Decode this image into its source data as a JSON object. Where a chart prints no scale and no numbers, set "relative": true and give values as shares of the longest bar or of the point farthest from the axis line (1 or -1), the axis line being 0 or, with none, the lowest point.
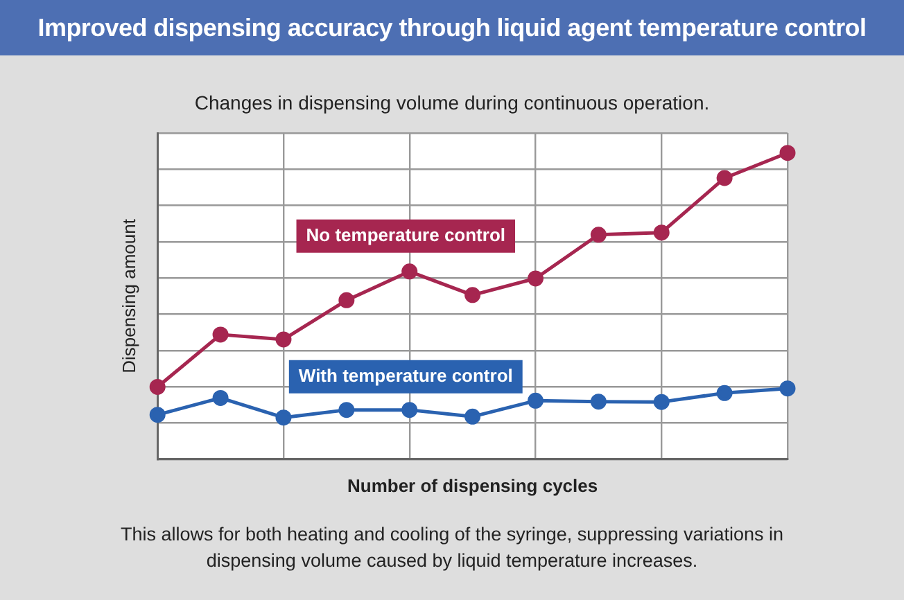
{
  "chart_data": {
    "type": "line",
    "title": "Improved dispensing accuracy through liquid agent temperature control",
    "subtitle": "Changes in dispensing volume during continuous operation.",
    "xlabel": "Number of dispensing cycles",
    "ylabel": "Dispensing amount",
    "annotations": [
      "This allows for both heating and cooling of the syringe, suppressing variations in dispensing volume caused by liquid temperature increases."
    ],
    "categories": [
      null,
      null,
      null,
      null,
      null,
      null,
      null,
      null,
      null,
      null,
      null
    ],
    "relative": true,
    "grid": true,
    "legend": false,
    "marker": "circle",
    "line_style": "solid",
    "series": [
      {
        "name": "No temperature control",
        "color": "#a62650",
        "values": [
          0.236,
          0.407,
          0.391,
          0.519,
          0.613,
          0.536,
          0.59,
          0.733,
          0.74,
          0.918,
          1
        ]
      },
      {
        "name": "With temperature control",
        "color": "#2a62b0",
        "values": [
          0.145,
          0.2,
          0.136,
          0.161,
          0.161,
          0.139,
          0.191,
          0.188,
          0.187,
          0.216,
          0.231
        ]
      }
    ]
  }
}
